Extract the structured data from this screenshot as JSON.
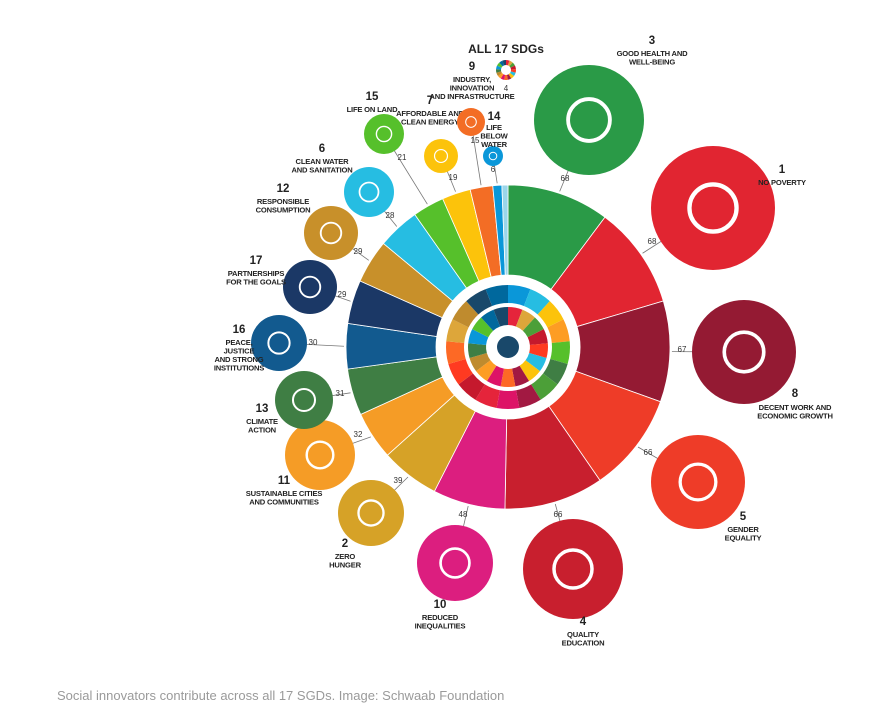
{
  "caption": "Social innovators contribute across all 17 SGDs. Image: Schwaab Foundation",
  "chart_data": {
    "type": "pie",
    "title": "ALL 17 SDGs",
    "title_value": 4,
    "slices": [
      {
        "goal": "3",
        "name": [
          "GOOD HEALTH AND",
          "WELL-BEING"
        ],
        "value": 68,
        "color": "#2a9a47"
      },
      {
        "goal": "1",
        "name": [
          "NO POVERTY"
        ],
        "value": 68,
        "color": "#e12531"
      },
      {
        "goal": "8",
        "name": [
          "DECENT WORK AND",
          "ECONOMIC GROWTH"
        ],
        "value": 67,
        "color": "#941a33"
      },
      {
        "goal": "5",
        "name": [
          "GENDER",
          "EQUALITY"
        ],
        "value": 66,
        "color": "#ee3c28"
      },
      {
        "goal": "4",
        "name": [
          "QUALITY",
          "EDUCATION"
        ],
        "value": 66,
        "color": "#c81f2e"
      },
      {
        "goal": "10",
        "name": [
          "REDUCED",
          "INEQUALITIES"
        ],
        "value": 48,
        "color": "#dc1e7f"
      },
      {
        "goal": "2",
        "name": [
          "ZERO",
          "HUNGER"
        ],
        "value": 39,
        "color": "#d6a227"
      },
      {
        "goal": "11",
        "name": [
          "SUSTAINABLE CITIES",
          "AND COMMUNITIES"
        ],
        "value": 32,
        "color": "#f59c26"
      },
      {
        "goal": "13",
        "name": [
          "CLIMATE",
          "ACTION"
        ],
        "value": 31,
        "color": "#3f7e44"
      },
      {
        "goal": "16",
        "name": [
          "PEACE,",
          "JUSTICE",
          "AND STRONG",
          "INSTITUTIONS"
        ],
        "value": 30,
        "color": "#125a8f"
      },
      {
        "goal": "17",
        "name": [
          "PARTNERSHIPS",
          "FOR THE GOALS"
        ],
        "value": 29,
        "color": "#1b3866"
      },
      {
        "goal": "12",
        "name": [
          "RESPONSIBLE",
          "CONSUMPTION"
        ],
        "value": 29,
        "color": "#c8902a"
      },
      {
        "goal": "6",
        "name": [
          "CLEAN WATER",
          "AND SANITATION"
        ],
        "value": 28,
        "color": "#26bde2"
      },
      {
        "goal": "15",
        "name": [
          "LIFE ON LAND"
        ],
        "value": 21,
        "color": "#56c02b"
      },
      {
        "goal": "7",
        "name": [
          "AFFORDABLE AND",
          "CLEAN ENERGY"
        ],
        "value": 19,
        "color": "#fcc30b"
      },
      {
        "goal": "9",
        "name": [
          "INDUSTRY,",
          "INNOVATION",
          "AND INFRASTRUCTURE"
        ],
        "value": 15,
        "color": "#f36d25"
      },
      {
        "goal": "14",
        "name": [
          "LIFE",
          "BELOW",
          "WATER"
        ],
        "value": 6,
        "color": "#0a97d9"
      },
      {
        "goal": "",
        "name": [],
        "value": 4,
        "color": "#9ad6ea"
      }
    ],
    "legend": "none"
  }
}
